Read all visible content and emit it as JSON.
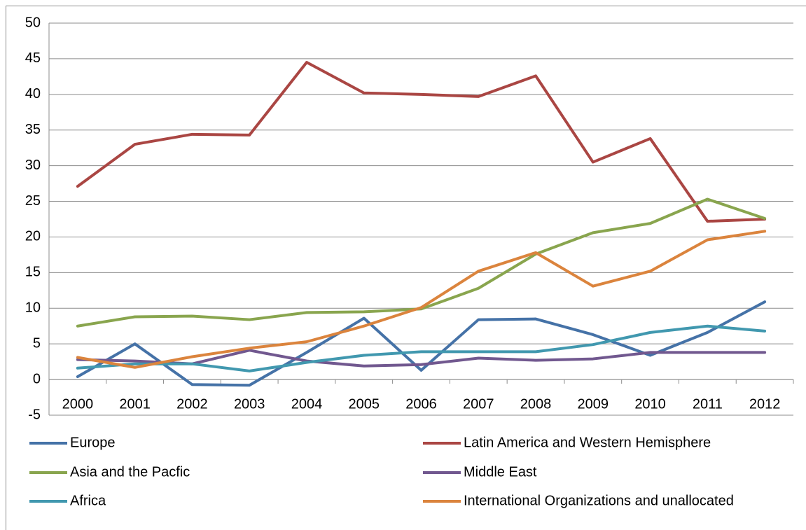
{
  "chart_data": {
    "type": "line",
    "categories": [
      "2000",
      "2001",
      "2002",
      "2003",
      "2004",
      "2005",
      "2006",
      "2007",
      "2008",
      "2009",
      "2010",
      "2011",
      "2012"
    ],
    "series": [
      {
        "name": "Europe",
        "color": "#4572a7",
        "values": [
          0.4,
          5.0,
          -0.7,
          -0.8,
          3.8,
          8.6,
          1.3,
          8.4,
          8.5,
          6.3,
          3.4,
          6.6,
          10.9
        ]
      },
      {
        "name": "Latin America and Western Hemisphere",
        "color": "#aa4643",
        "values": [
          27.1,
          33.0,
          34.4,
          34.3,
          44.5,
          40.2,
          40.0,
          39.7,
          42.6,
          30.5,
          33.8,
          22.2,
          22.5
        ]
      },
      {
        "name": "Asia and the Pacfic",
        "color": "#89a54e",
        "values": [
          7.5,
          8.8,
          8.9,
          8.4,
          9.4,
          9.5,
          9.9,
          12.8,
          17.6,
          20.6,
          21.9,
          25.3,
          22.6
        ]
      },
      {
        "name": "Middle East",
        "color": "#71588f",
        "values": [
          2.8,
          2.6,
          2.2,
          4.1,
          2.6,
          1.9,
          2.1,
          3.0,
          2.7,
          2.9,
          3.8,
          3.8,
          3.8
        ]
      },
      {
        "name": "Africa",
        "color": "#4198af",
        "values": [
          1.6,
          2.2,
          2.2,
          1.2,
          2.4,
          3.4,
          3.9,
          3.9,
          3.9,
          4.9,
          6.6,
          7.5,
          6.8
        ]
      },
      {
        "name": "International Organizations and unallocated",
        "color": "#db843d",
        "values": [
          3.1,
          1.7,
          3.2,
          4.4,
          5.3,
          7.5,
          10.1,
          15.2,
          17.8,
          13.1,
          15.2,
          19.6,
          20.8
        ]
      }
    ],
    "ylim": [
      -5,
      50
    ],
    "yticks": [
      -5,
      0,
      5,
      10,
      15,
      20,
      25,
      30,
      35,
      40,
      45,
      50
    ],
    "grid": true
  }
}
